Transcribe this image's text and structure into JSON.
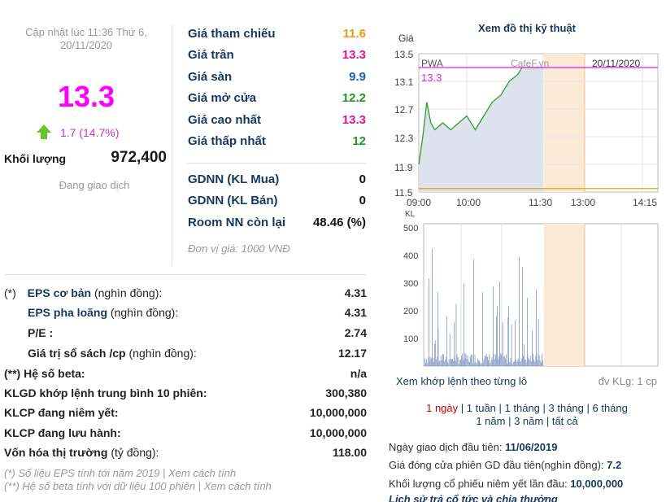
{
  "left": {
    "updated": "Cập nhật lúc 11:36 Thứ 6,",
    "updated_date": "20/11/2020",
    "price": "13.3",
    "change": "1.7 (14.7%)",
    "volume_label": "Khối lượng",
    "volume_value": "972,400",
    "status": "Đang giao dịch"
  },
  "info": [
    {
      "label": "Giá tham chiếu",
      "value": "11.6"
    },
    {
      "label": "Giá trần",
      "value": "13.3"
    },
    {
      "label": "Giá sàn",
      "value": "9.9"
    },
    {
      "label": "Giá mở cửa",
      "value": "12.2"
    },
    {
      "label": "Giá cao nhất",
      "value": "13.3"
    },
    {
      "label": "Giá thấp nhất",
      "value": "12"
    }
  ],
  "foreign": [
    {
      "label": "GDNN (KL Mua)",
      "value": "0"
    },
    {
      "label": "GDNN (KL Bán)",
      "value": "0"
    },
    {
      "label": "Room NN còn lại",
      "value": "48.46 (%)"
    }
  ],
  "unit_note": "Đơn vị giá: 1000 VNĐ",
  "fin": [
    {
      "prefix": "(*)",
      "label": "EPS cơ bản",
      "suffix": "(nghìn đồng):",
      "value": "4.31"
    },
    {
      "prefix": "",
      "label": "EPS pha loãng",
      "suffix": "(nghìn đồng):",
      "value": "4.31"
    },
    {
      "prefix": "",
      "label": "P/E :",
      "suffix": "",
      "value": "2.74"
    },
    {
      "prefix": "",
      "label": "Giá trị sổ sách /cp",
      "suffix": "(nghìn đồng):",
      "value": "12.17"
    },
    {
      "prefix": "(**)",
      "label": "Hệ số beta:",
      "suffix": "",
      "value": "n/a"
    },
    {
      "prefix": "",
      "label": "KLGD khớp lệnh trung bình 10 phiên:",
      "suffix": "",
      "value": "300,380"
    },
    {
      "prefix": "",
      "label": "KLCP đang niêm yết:",
      "suffix": "",
      "value": "10,000,000"
    },
    {
      "prefix": "",
      "label": "KLCP đang lưu hành:",
      "suffix": "",
      "value": "10,000,000"
    },
    {
      "prefix": "",
      "label": "Vốn hóa thị trường",
      "suffix": "(tỷ đồng):",
      "value": "118.00"
    }
  ],
  "notes": {
    "n1a": "(*) Số liệu EPS tính tới năm 2019 |",
    "n1b": "Xem cách tính",
    "n2a": "(**) Hệ số beta tính với dữ liệu 100 phiên |",
    "n2b": "Xem cách tính"
  },
  "chart": {
    "title": "Xem đồ thị kỹ thuật",
    "ylabel": "Giá",
    "ticker": "PWA",
    "watermark": "CafeF.vn",
    "date": "20/11/2020",
    "last": "13.3",
    "yticks": [
      "13.5",
      "13.1",
      "12.7",
      "12.3",
      "11.9",
      "11.5"
    ],
    "xticks": [
      "09:00",
      "10:00",
      "11:30",
      "13:00",
      "14:15"
    ],
    "kl_label": "KL",
    "vticks": [
      "500",
      "400",
      "300",
      "200",
      "100"
    ],
    "accent_up": "#2e9e2e",
    "ref_line": "#f0a000",
    "ceil_line": "#e020e0"
  },
  "chart_data": {
    "type": "line",
    "title": "",
    "series": [
      {
        "values": [
          [
            "09:00",
            11.9
          ],
          [
            "09:05",
            12.3
          ],
          [
            "09:10",
            12.8
          ],
          [
            "09:15",
            12.5
          ],
          [
            "09:20",
            12.4
          ],
          [
            "09:30",
            12.5
          ],
          [
            "09:40",
            12.4
          ],
          [
            "09:50",
            12.5
          ],
          [
            "10:00",
            12.6
          ],
          [
            "10:10",
            12.4
          ],
          [
            "10:20",
            12.6
          ],
          [
            "10:30",
            12.8
          ],
          [
            "10:40",
            12.9
          ],
          [
            "10:50",
            13.1
          ],
          [
            "11:00",
            13.2
          ],
          [
            "11:05",
            13.3
          ],
          [
            "11:15",
            13.3
          ],
          [
            "11:30",
            13.3
          ]
        ]
      }
    ],
    "ylim": [
      11.5,
      13.5
    ]
  },
  "ranges": [
    "1 ngày",
    "1 tuần",
    "1 tháng",
    "3 tháng",
    "6 tháng",
    "1 năm",
    "3 năm",
    "tất cả"
  ],
  "chart_links": {
    "left": "Xem khớp lệnh theo từng lô",
    "right": "đv KLg: 1 cp"
  },
  "facts": [
    {
      "label": "Ngày giao dịch đầu tiên:",
      "value": "11/06/2019"
    },
    {
      "label": "Giá đóng cửa phiên GD đầu tiên(nghìn đồng):",
      "value": "7.2"
    },
    {
      "label": "Khối lượng cổ phiếu niêm yết lần đầu:",
      "value": "10,000,000"
    }
  ],
  "history_link": "Lịch sử trả cổ tức và chia thưởng"
}
